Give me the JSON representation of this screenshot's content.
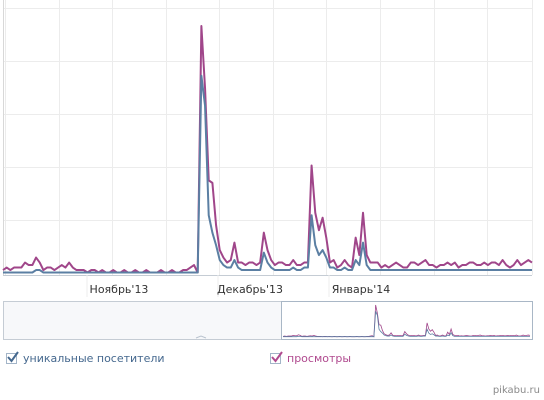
{
  "chart_data": {
    "type": "line",
    "title": "",
    "xlabel": "",
    "ylabel": "",
    "ylim": [
      0,
      100
    ],
    "grid": true,
    "x_tick_labels": [
      "Ноябрь'13",
      "Декабрь'13",
      "Январь'14"
    ],
    "series": [
      {
        "name": "просмотры",
        "color": "#a0468a",
        "values": [
          2,
          3,
          2,
          3,
          3,
          3,
          5,
          4,
          4,
          7,
          5,
          2,
          3,
          3,
          2,
          3,
          4,
          3,
          5,
          3,
          2,
          2,
          2,
          1,
          2,
          2,
          1,
          2,
          1,
          1,
          2,
          1,
          1,
          2,
          1,
          1,
          2,
          1,
          1,
          2,
          1,
          1,
          1,
          2,
          1,
          1,
          2,
          1,
          1,
          2,
          2,
          3,
          4,
          1,
          100,
          75,
          38,
          37,
          20,
          10,
          7,
          5,
          6,
          13,
          5,
          5,
          4,
          5,
          5,
          4,
          5,
          17,
          10,
          6,
          4,
          5,
          5,
          4,
          4,
          6,
          4,
          4,
          5,
          5,
          44,
          25,
          18,
          23,
          15,
          5,
          6,
          3,
          4,
          6,
          4,
          3,
          15,
          8,
          25,
          8,
          5,
          5,
          5,
          3,
          4,
          3,
          4,
          5,
          4,
          3,
          3,
          5,
          5,
          4,
          5,
          6,
          4,
          4,
          3,
          4,
          4,
          5,
          4,
          5,
          3,
          4,
          4,
          5,
          5,
          4,
          4,
          5,
          4,
          5,
          5,
          4,
          6,
          4,
          3,
          4,
          6,
          4,
          5,
          6,
          5
        ]
      },
      {
        "name": "уникальные посетители",
        "color": "#5b7fa3",
        "values": [
          1,
          1,
          1,
          1,
          1,
          1,
          1,
          1,
          1,
          2,
          2,
          1,
          1,
          1,
          1,
          1,
          1,
          1,
          1,
          1,
          1,
          1,
          1,
          1,
          1,
          1,
          1,
          1,
          1,
          1,
          1,
          1,
          1,
          1,
          1,
          1,
          1,
          1,
          1,
          1,
          1,
          1,
          1,
          1,
          1,
          1,
          1,
          1,
          1,
          1,
          1,
          1,
          1,
          1,
          80,
          68,
          24,
          17,
          12,
          6,
          4,
          3,
          3,
          6,
          3,
          2,
          2,
          2,
          2,
          2,
          2,
          9,
          5,
          3,
          2,
          2,
          2,
          2,
          2,
          3,
          2,
          2,
          3,
          3,
          24,
          12,
          8,
          10,
          7,
          3,
          3,
          2,
          2,
          3,
          2,
          2,
          6,
          4,
          13,
          4,
          2,
          2,
          2,
          2,
          2,
          2,
          2,
          2,
          2,
          2,
          2,
          2,
          2,
          2,
          2,
          2,
          2,
          2,
          2,
          2,
          2,
          2,
          2,
          2,
          2,
          2,
          2,
          2,
          2,
          2,
          2,
          2,
          2,
          2,
          2,
          2,
          2,
          2,
          2,
          2,
          2,
          2,
          2,
          2,
          2
        ]
      }
    ]
  },
  "legend": {
    "visitors_label": "уникальные посетители",
    "visitors_checked": true,
    "views_label": "просмотры",
    "views_checked": true
  },
  "watermark": "pikabu.ru"
}
